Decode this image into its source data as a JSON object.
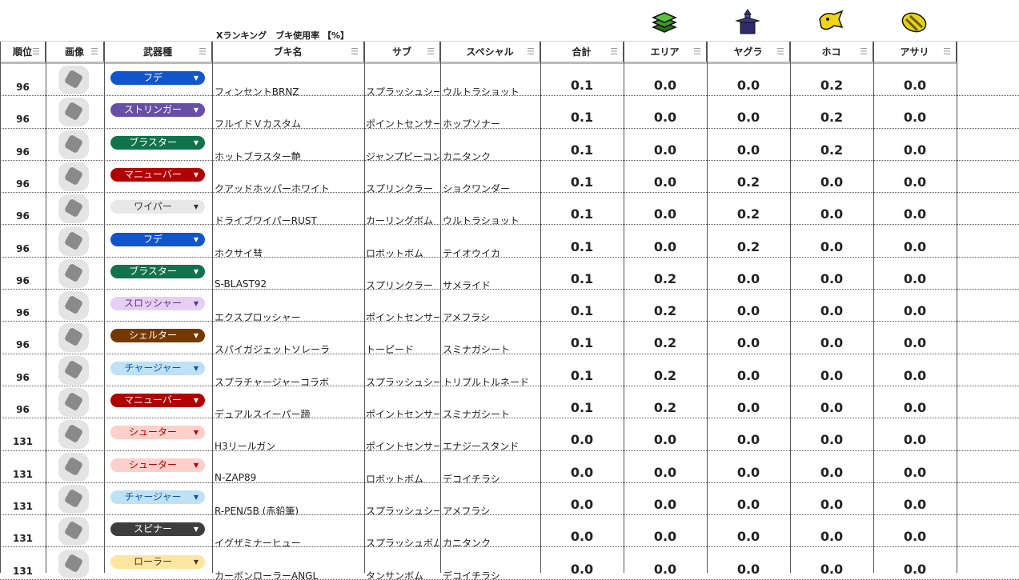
{
  "sheet_title": "Xランキング　ブキ使用率 【%】",
  "headers": [
    "順位",
    "画像",
    "武器種",
    "ブキ名",
    "サブ",
    "スペシャル",
    "合計",
    "エリア",
    "ヤグラ",
    "ホコ",
    "アサリ"
  ],
  "mode_icons": [
    "area-icon",
    "yagura-icon",
    "hoko-icon",
    "asari-icon"
  ],
  "type_colors": {
    "フデ": [
      "#1155cc",
      "#fff"
    ],
    "ストリンガー": [
      "#674ea7",
      "#fff"
    ],
    "ブラスター": [
      "#11734b",
      "#fff"
    ],
    "マニューバー": [
      "#b10202",
      "#fff"
    ],
    "ワイパー": [
      "#e8e8e8",
      "#333"
    ],
    "スロッシャー": [
      "#e6cff2",
      "#5a3286"
    ],
    "シェルター": [
      "#753800",
      "#fff"
    ],
    "チャージャー": [
      "#bfe1f6",
      "#0a53a8"
    ],
    "シューター": [
      "#ffcfc9",
      "#b10202"
    ],
    "スピナー": [
      "#3d3d3d",
      "#fff"
    ],
    "ローラー": [
      "#ffe5a0",
      "#473821"
    ]
  },
  "rows": [
    {
      "rank": "96",
      "type": "フデ",
      "name": "フィンセントBRNZ",
      "sub": "スプラッシュシールド",
      "special": "ウルトラショット",
      "total": "0.1",
      "area": "0.0",
      "yagura": "0.0",
      "hoko": "0.2",
      "asari": "0.0"
    },
    {
      "rank": "96",
      "type": "ストリンガー",
      "name": "フルイドＶカスタム",
      "sub": "ポイントセンサー",
      "special": "ホップソナー",
      "total": "0.1",
      "area": "0.0",
      "yagura": "0.0",
      "hoko": "0.2",
      "asari": "0.0"
    },
    {
      "rank": "96",
      "type": "ブラスター",
      "name": "ホットブラスター艶",
      "sub": "ジャンプビーコン",
      "special": "カニタンク",
      "total": "0.1",
      "area": "0.0",
      "yagura": "0.0",
      "hoko": "0.2",
      "asari": "0.0"
    },
    {
      "rank": "96",
      "type": "マニューバー",
      "name": "クアッドホッパーホワイト",
      "sub": "スプリンクラー",
      "special": "ショクワンダー",
      "total": "0.1",
      "area": "0.0",
      "yagura": "0.2",
      "hoko": "0.0",
      "asari": "0.0"
    },
    {
      "rank": "96",
      "type": "ワイパー",
      "name": "ドライブワイパーRUST",
      "sub": "カーリングボム",
      "special": "ウルトラショット",
      "total": "0.1",
      "area": "0.0",
      "yagura": "0.2",
      "hoko": "0.0",
      "asari": "0.0"
    },
    {
      "rank": "96",
      "type": "フデ",
      "name": "ホクサイ彗",
      "sub": "ロボットボム",
      "special": "テイオウイカ",
      "total": "0.1",
      "area": "0.0",
      "yagura": "0.2",
      "hoko": "0.0",
      "asari": "0.0"
    },
    {
      "rank": "96",
      "type": "ブラスター",
      "name": "S-BLAST92",
      "sub": "スプリンクラー",
      "special": "サメライド",
      "total": "0.1",
      "area": "0.2",
      "yagura": "0.0",
      "hoko": "0.0",
      "asari": "0.0"
    },
    {
      "rank": "96",
      "type": "スロッシャー",
      "name": "エクスプロッシャー",
      "sub": "ポイントセンサー",
      "special": "アメフラシ",
      "total": "0.1",
      "area": "0.2",
      "yagura": "0.0",
      "hoko": "0.0",
      "asari": "0.0"
    },
    {
      "rank": "96",
      "type": "シェルター",
      "name": "スパイガジェットソレーラ",
      "sub": "トーピード",
      "special": "スミナガシート",
      "total": "0.1",
      "area": "0.2",
      "yagura": "0.0",
      "hoko": "0.0",
      "asari": "0.0"
    },
    {
      "rank": "96",
      "type": "チャージャー",
      "name": "スプラチャージャーコラボ",
      "sub": "スプラッシュシールド",
      "special": "トリプルトルネード",
      "total": "0.1",
      "area": "0.2",
      "yagura": "0.0",
      "hoko": "0.0",
      "asari": "0.0"
    },
    {
      "rank": "96",
      "type": "マニューバー",
      "name": "デュアルスイーパー蹄",
      "sub": "ポイントセンサー",
      "special": "スミナガシート",
      "total": "0.1",
      "area": "0.2",
      "yagura": "0.0",
      "hoko": "0.0",
      "asari": "0.0"
    },
    {
      "rank": "131",
      "type": "シューター",
      "name": "H3リールガン",
      "sub": "ポイントセンサー",
      "special": "エナジースタンド",
      "total": "0.0",
      "area": "0.0",
      "yagura": "0.0",
      "hoko": "0.0",
      "asari": "0.0"
    },
    {
      "rank": "131",
      "type": "シューター",
      "name": "N-ZAP89",
      "sub": "ロボットボム",
      "special": "デコイチラシ",
      "total": "0.0",
      "area": "0.0",
      "yagura": "0.0",
      "hoko": "0.0",
      "asari": "0.0"
    },
    {
      "rank": "131",
      "type": "チャージャー",
      "name": "R-PEN/5B (赤鉛筆)",
      "sub": "スプラッシュシールド",
      "special": "アメフラシ",
      "total": "0.0",
      "area": "0.0",
      "yagura": "0.0",
      "hoko": "0.0",
      "asari": "0.0"
    },
    {
      "rank": "131",
      "type": "スピナー",
      "name": "イグザミナーヒュー",
      "sub": "スプラッシュボム",
      "special": "カニタンク",
      "total": "0.0",
      "area": "0.0",
      "yagura": "0.0",
      "hoko": "0.0",
      "asari": "0.0"
    },
    {
      "rank": "131",
      "type": "ローラー",
      "name": "カーボンローラーANGL",
      "sub": "タンサンボム",
      "special": "デコイチラシ",
      "total": "0.0",
      "area": "0.0",
      "yagura": "0.0",
      "hoko": "0.0",
      "asari": "0.0"
    }
  ]
}
